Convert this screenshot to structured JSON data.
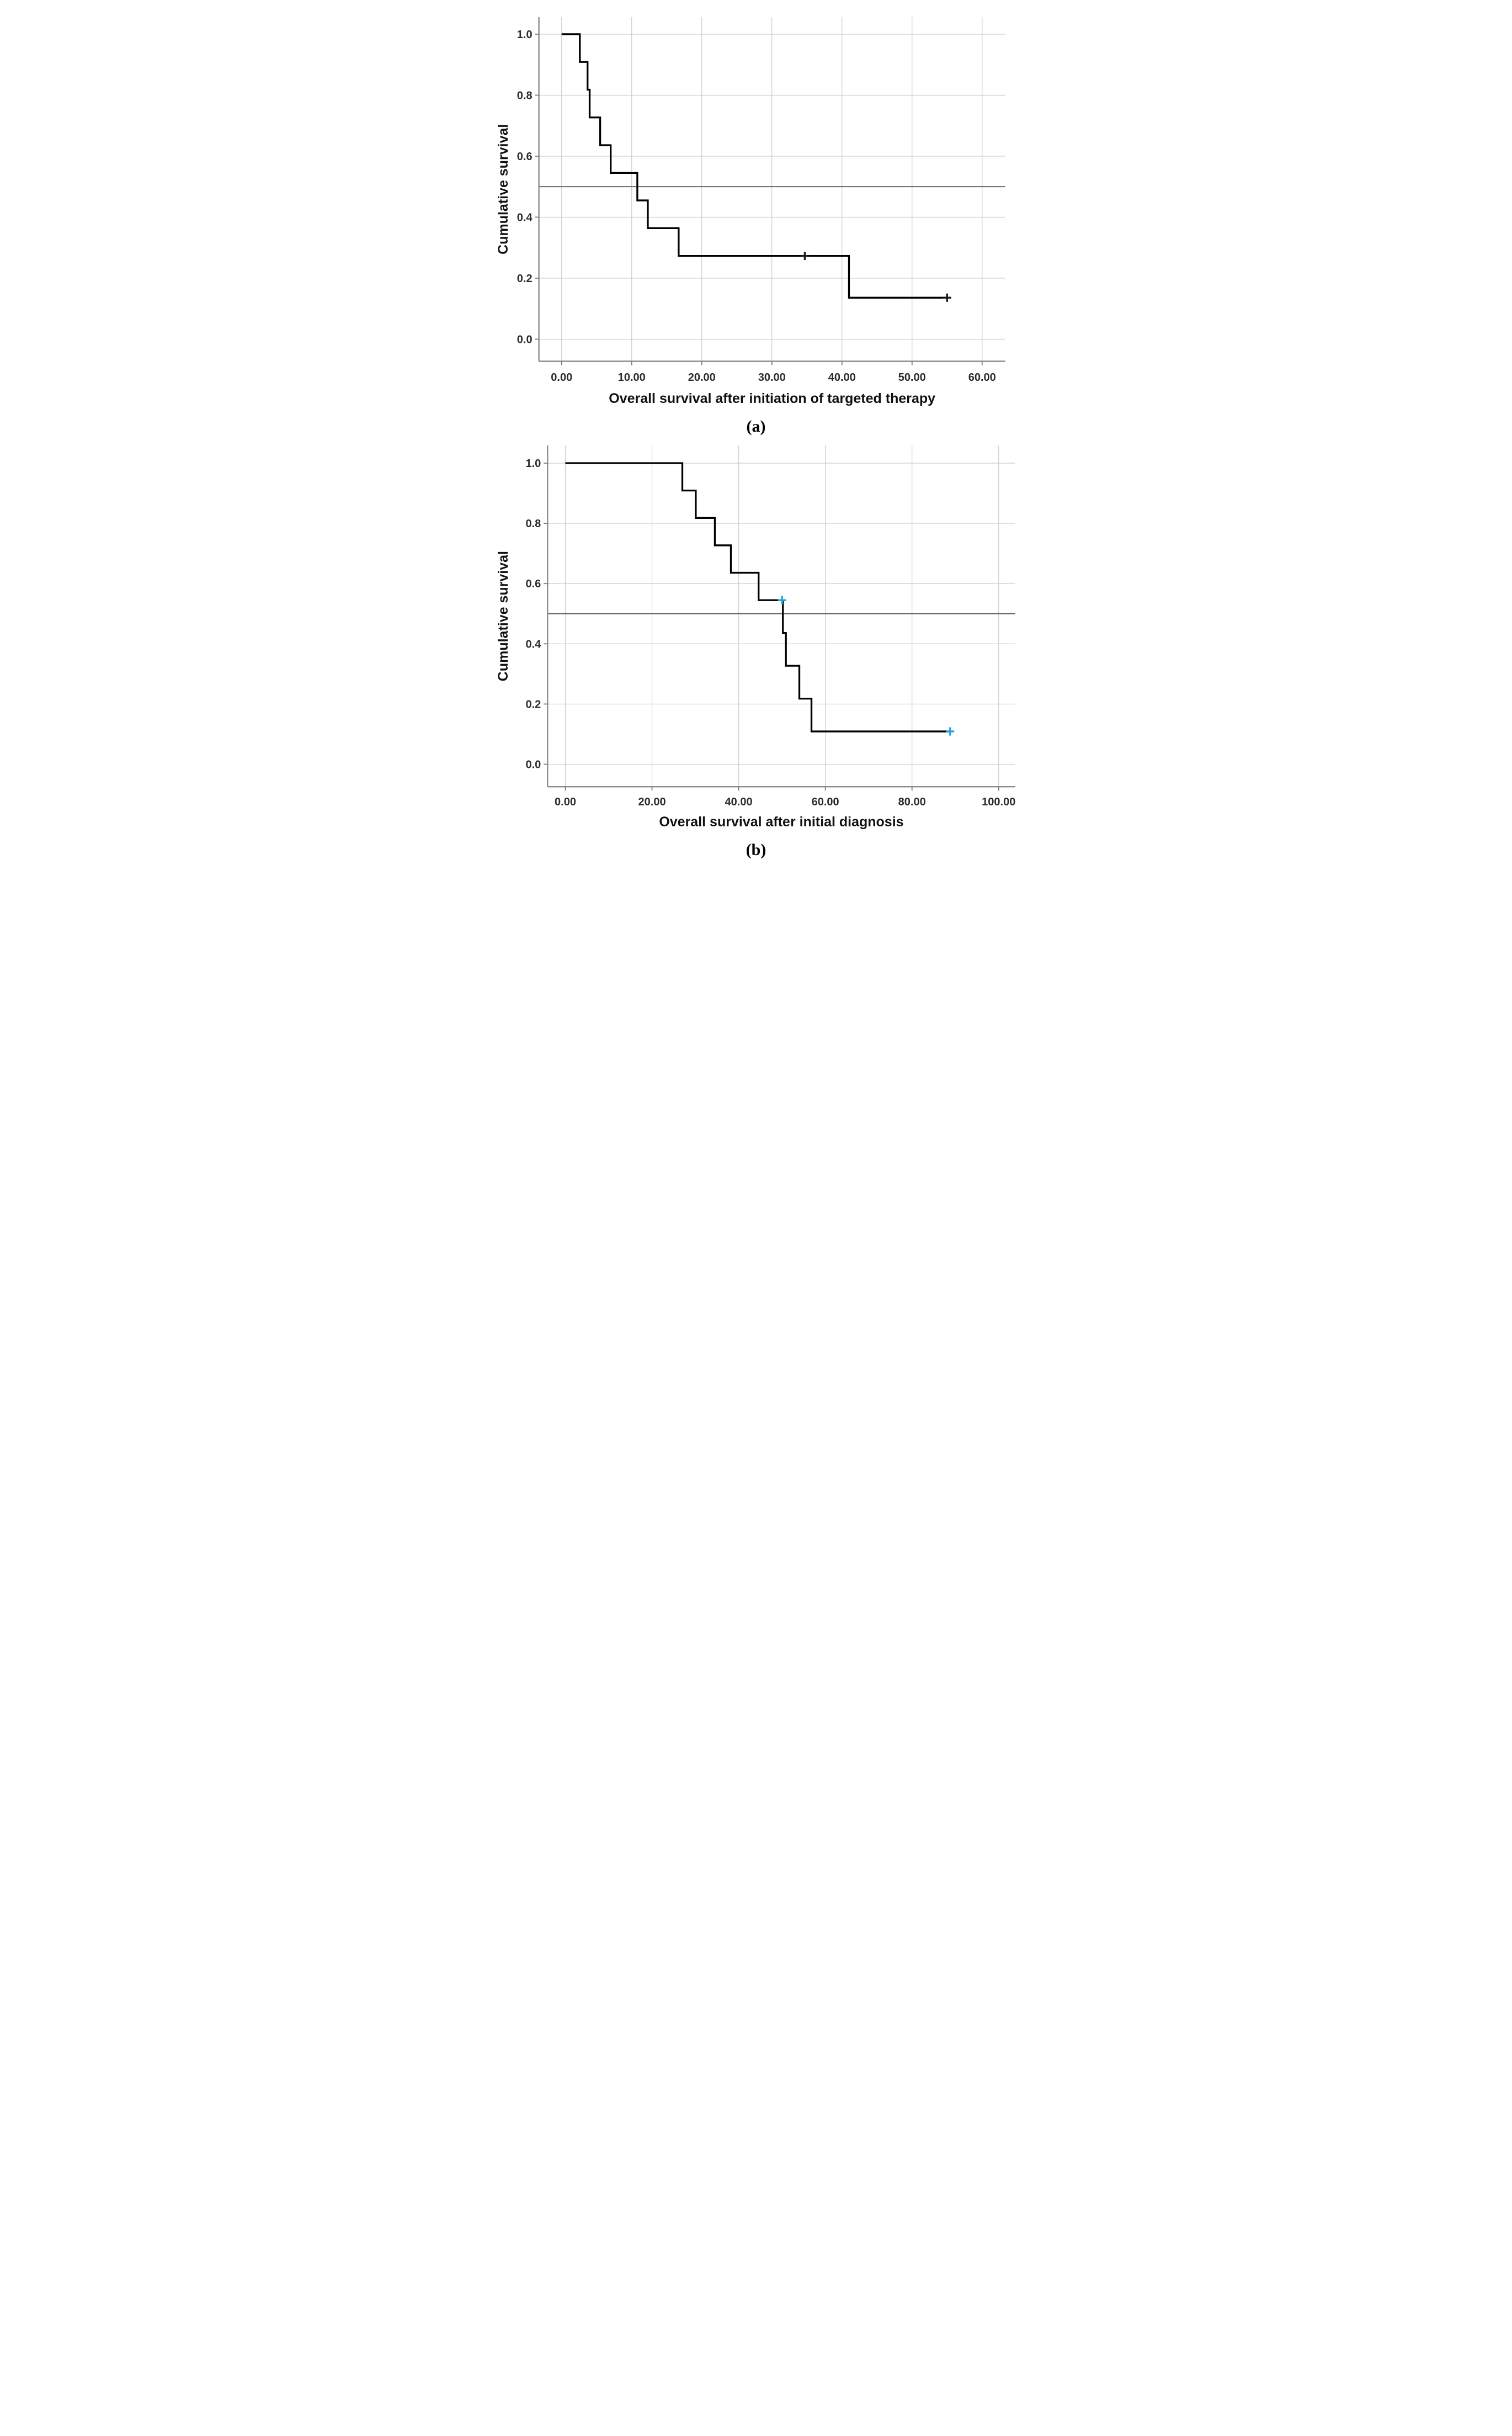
{
  "figure": {
    "background": "#ffffff",
    "description": "Two Kaplan-Meier cumulative survival step curves with 0.5 reference line and censoring marks"
  },
  "colors": {
    "curve": "#000000",
    "grid_light": "#c9c9c9",
    "grid_reference": "#5f5f5f",
    "axis_line": "#8c8c8c",
    "tick_mark": "#7a7a7a",
    "label_text": "#2b2b2b",
    "censor_black": "#1a1a1a",
    "censor_blue": "#29a3dc"
  },
  "chart_data": [
    {
      "type": "line",
      "chart_kind": "kaplan_meier_step",
      "panel_label": "(a)",
      "xlabel": "Overall survival after initiation of targeted therapy",
      "ylabel": "Cumulative survival",
      "x_tick_values": [
        0,
        10,
        20,
        30,
        40,
        50,
        60
      ],
      "x_tick_labels": [
        "0.00",
        "10.00",
        "20.00",
        "30.00",
        "40.00",
        "50.00",
        "60.00"
      ],
      "y_tick_values": [
        1.0,
        0.8,
        0.6,
        0.4,
        0.2,
        0.0
      ],
      "y_tick_labels": [
        "1.0",
        "0.8",
        "0.6",
        "0.4",
        "0.2",
        "0.0"
      ],
      "xlim": [
        -3.24,
        63.3
      ],
      "ylim": [
        -0.0725,
        1.056
      ],
      "grid": true,
      "legend": "none",
      "reference_line_y": 0.5,
      "series": [
        {
          "name": "Overall survival after initiation of targeted therapy",
          "color": "#000000",
          "step_points": [
            {
              "x": 0.0,
              "y": 1.0
            },
            {
              "x": 2.6,
              "y": 0.909
            },
            {
              "x": 3.7,
              "y": 0.818
            },
            {
              "x": 4.0,
              "y": 0.727
            },
            {
              "x": 5.5,
              "y": 0.636
            },
            {
              "x": 7.0,
              "y": 0.545
            },
            {
              "x": 10.8,
              "y": 0.455
            },
            {
              "x": 12.3,
              "y": 0.364
            },
            {
              "x": 16.7,
              "y": 0.273
            },
            {
              "x": 41.0,
              "y": 0.136
            }
          ],
          "end_x": 55.2,
          "censored": [
            {
              "x": 34.7,
              "y": 0.273
            },
            {
              "x": 55.0,
              "y": 0.136
            }
          ],
          "censor_color": "#1a1a1a"
        }
      ]
    },
    {
      "type": "line",
      "chart_kind": "kaplan_meier_step",
      "panel_label": "(b)",
      "xlabel": "Overall survival after initial diagnosis",
      "ylabel": "Cumulative survival",
      "x_tick_values": [
        0,
        20,
        40,
        60,
        80,
        100
      ],
      "x_tick_labels": [
        "0.00",
        "20.00",
        "40.00",
        "60.00",
        "80.00",
        "100.00"
      ],
      "y_tick_values": [
        1.0,
        0.8,
        0.6,
        0.4,
        0.2,
        0.0
      ],
      "y_tick_labels": [
        "1.0",
        "0.8",
        "0.6",
        "0.4",
        "0.2",
        "0.0"
      ],
      "xlim": [
        -4.1,
        103.8
      ],
      "ylim": [
        -0.0746,
        1.0587
      ],
      "grid": true,
      "legend": "none",
      "reference_line_y": 0.5,
      "series": [
        {
          "name": "Overall survival after initial diagnosis",
          "color": "#000000",
          "step_points": [
            {
              "x": 0.0,
              "y": 1.0
            },
            {
              "x": 27.0,
              "y": 0.909
            },
            {
              "x": 30.1,
              "y": 0.818
            },
            {
              "x": 34.5,
              "y": 0.727
            },
            {
              "x": 38.2,
              "y": 0.636
            },
            {
              "x": 44.6,
              "y": 0.545
            },
            {
              "x": 50.2,
              "y": 0.436
            },
            {
              "x": 50.9,
              "y": 0.327
            },
            {
              "x": 54.0,
              "y": 0.218
            },
            {
              "x": 56.8,
              "y": 0.109
            }
          ],
          "end_x": 88.8,
          "censored": [
            {
              "x": 50.0,
              "y": 0.545
            },
            {
              "x": 88.8,
              "y": 0.109
            }
          ],
          "censor_color": "#29a3dc"
        }
      ]
    }
  ]
}
